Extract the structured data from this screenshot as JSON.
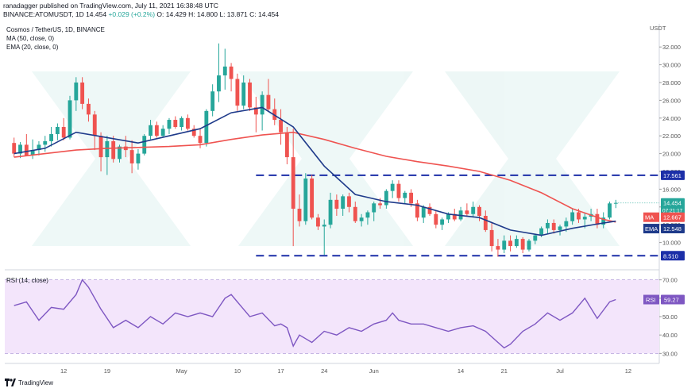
{
  "header": {
    "publisher_line": "ranadagger published on TradingView.com, July 11, 2021 16:38:48 UTC",
    "ohlc_prefix": "BINANCE:ATOMUSDT, 1D 14.454",
    "ohlc_change": "+0.029 (+0.2%)",
    "ohlc_values": "O: 14.429 H: 14.800 L: 13.871 C: 14.454"
  },
  "legend": {
    "title": "Cosmos / TetherUS, 1D, BINANCE",
    "ma": "MA (50, close, 0)",
    "ema": "EMA (20, close, 0)",
    "rsi": "RSI (14, close)"
  },
  "footer": {
    "brand": "TradingView"
  },
  "colors": {
    "up": "#26a69a",
    "down": "#ef5350",
    "ma": "#ef5350",
    "ema": "#1e3a8a",
    "level": "#1c2fa8",
    "rsi_line": "#7e57c2",
    "rsi_band": "#f3e5fb"
  },
  "chart_data": [
    {
      "type": "candlestick",
      "title": "Cosmos / TetherUS, 1D, BINANCE",
      "currency": "USDT",
      "ylim": [
        8.0,
        33.0
      ],
      "y_ticks": [
        10.0,
        12.0,
        14.0,
        16.0,
        18.0,
        20.0,
        22.0,
        24.0,
        26.0,
        28.0,
        30.0,
        32.0
      ],
      "y_tick_labels": [
        "10.000",
        "12.000",
        "14.000",
        "16.000",
        "18.000",
        "20.000",
        "22.000",
        "24.000",
        "26.000",
        "28.000",
        "30.000",
        "32.000"
      ],
      "x_labels": [
        {
          "day": 8,
          "label": "12"
        },
        {
          "day": 15,
          "label": "19"
        },
        {
          "day": 27,
          "label": "May"
        },
        {
          "day": 36,
          "label": "10"
        },
        {
          "day": 43,
          "label": "17"
        },
        {
          "day": 50,
          "label": "24"
        },
        {
          "day": 58,
          "label": "Jun"
        },
        {
          "day": 72,
          "label": "14"
        },
        {
          "day": 79,
          "label": "21"
        },
        {
          "day": 88,
          "label": "Jul"
        },
        {
          "day": 99,
          "label": "12"
        }
      ],
      "candles": [
        [
          0,
          21.2,
          21.8,
          19.6,
          20.0
        ],
        [
          1,
          20.0,
          21.3,
          19.5,
          21.0
        ],
        [
          2,
          21.0,
          22.2,
          19.8,
          19.8
        ],
        [
          3,
          19.8,
          21.6,
          19.4,
          20.4
        ],
        [
          4,
          20.4,
          21.4,
          19.8,
          21.0
        ],
        [
          5,
          21.0,
          22.0,
          20.2,
          21.4
        ],
        [
          6,
          21.4,
          23.0,
          20.8,
          22.2
        ],
        [
          7,
          22.2,
          23.4,
          21.5,
          23.0
        ],
        [
          8,
          23.0,
          24.0,
          21.5,
          21.8
        ],
        [
          9,
          21.8,
          26.5,
          21.6,
          26.0
        ],
        [
          10,
          26.0,
          28.6,
          24.8,
          28.0
        ],
        [
          11,
          28.0,
          28.6,
          25.0,
          25.6
        ],
        [
          12,
          25.6,
          26.2,
          23.6,
          24.4
        ],
        [
          13,
          24.4,
          24.8,
          20.4,
          22.0
        ],
        [
          14,
          22.0,
          22.4,
          18.0,
          19.6
        ],
        [
          15,
          19.6,
          22.0,
          17.6,
          21.4
        ],
        [
          16,
          21.4,
          22.0,
          19.0,
          19.4
        ],
        [
          17,
          19.4,
          21.0,
          19.0,
          20.8
        ],
        [
          18,
          20.8,
          22.0,
          19.6,
          20.4
        ],
        [
          19,
          20.4,
          21.5,
          17.8,
          18.9
        ],
        [
          20,
          18.9,
          20.5,
          18.2,
          20.0
        ],
        [
          21,
          20.0,
          22.2,
          19.8,
          22.0
        ],
        [
          22,
          22.0,
          23.8,
          21.6,
          23.2
        ],
        [
          23,
          23.2,
          23.6,
          21.8,
          22.0
        ],
        [
          24,
          22.0,
          23.2,
          21.8,
          22.8
        ],
        [
          25,
          22.8,
          24.0,
          22.2,
          23.8
        ],
        [
          26,
          23.8,
          24.2,
          22.8,
          23.0
        ],
        [
          27,
          23.0,
          24.2,
          22.6,
          24.0
        ],
        [
          28,
          24.0,
          24.4,
          22.6,
          22.8
        ],
        [
          29,
          22.8,
          23.2,
          21.8,
          22.0
        ],
        [
          30,
          22.0,
          22.8,
          20.6,
          21.2
        ],
        [
          31,
          21.2,
          25.0,
          20.8,
          24.8
        ],
        [
          32,
          24.8,
          27.8,
          24.2,
          27.0
        ],
        [
          33,
          27.0,
          32.4,
          25.8,
          28.8
        ],
        [
          34,
          28.8,
          31.8,
          27.2,
          29.8
        ],
        [
          35,
          29.8,
          30.2,
          27.0,
          28.4
        ],
        [
          36,
          28.4,
          29.0,
          24.8,
          25.4
        ],
        [
          37,
          25.4,
          28.8,
          25.0,
          28.0
        ],
        [
          38,
          28.0,
          28.4,
          24.8,
          25.2
        ],
        [
          39,
          25.2,
          26.4,
          22.4,
          24.4
        ],
        [
          40,
          24.4,
          27.0,
          22.6,
          26.6
        ],
        [
          41,
          26.6,
          28.4,
          24.8,
          25.0
        ],
        [
          42,
          25.0,
          26.2,
          23.2,
          23.8
        ],
        [
          43,
          23.8,
          25.0,
          21.0,
          22.4
        ],
        [
          44,
          22.4,
          23.0,
          18.8,
          19.6
        ],
        [
          45,
          19.6,
          22.8,
          9.6,
          13.8
        ],
        [
          46,
          13.8,
          15.4,
          11.8,
          12.4
        ],
        [
          47,
          12.4,
          17.8,
          12.0,
          17.2
        ],
        [
          48,
          17.2,
          17.6,
          12.6,
          12.8
        ],
        [
          49,
          12.8,
          13.2,
          11.4,
          11.8
        ],
        [
          50,
          11.8,
          12.6,
          8.6,
          12.0
        ],
        [
          51,
          12.0,
          15.6,
          11.6,
          14.8
        ],
        [
          52,
          14.8,
          15.4,
          13.0,
          13.8
        ],
        [
          53,
          13.8,
          15.4,
          13.0,
          15.2
        ],
        [
          54,
          15.2,
          15.6,
          13.4,
          14.0
        ],
        [
          55,
          14.0,
          14.6,
          12.2,
          12.4
        ],
        [
          56,
          12.4,
          13.2,
          11.8,
          12.8
        ],
        [
          57,
          12.8,
          13.6,
          12.0,
          13.4
        ],
        [
          58,
          13.4,
          14.6,
          12.4,
          14.4
        ],
        [
          59,
          14.4,
          15.0,
          13.8,
          14.2
        ],
        [
          60,
          14.2,
          16.0,
          13.8,
          15.8
        ],
        [
          61,
          15.8,
          17.0,
          15.0,
          16.6
        ],
        [
          62,
          16.6,
          17.0,
          14.6,
          15.0
        ],
        [
          63,
          15.0,
          15.8,
          14.4,
          15.6
        ],
        [
          64,
          15.6,
          16.0,
          14.0,
          14.4
        ],
        [
          65,
          14.4,
          14.8,
          12.4,
          12.8
        ],
        [
          66,
          12.8,
          14.2,
          12.2,
          14.0
        ],
        [
          67,
          14.0,
          14.4,
          13.0,
          13.2
        ],
        [
          68,
          13.2,
          13.6,
          11.6,
          12.0
        ],
        [
          69,
          12.0,
          12.8,
          11.4,
          12.6
        ],
        [
          70,
          12.6,
          13.4,
          12.2,
          13.2
        ],
        [
          71,
          13.2,
          13.8,
          12.4,
          12.6
        ],
        [
          72,
          12.6,
          14.0,
          12.4,
          13.6
        ],
        [
          73,
          13.6,
          14.4,
          13.0,
          13.2
        ],
        [
          74,
          13.2,
          14.6,
          12.8,
          14.0
        ],
        [
          75,
          14.0,
          14.2,
          12.4,
          13.0
        ],
        [
          76,
          13.0,
          13.6,
          11.2,
          11.4
        ],
        [
          77,
          11.4,
          12.2,
          9.0,
          9.6
        ],
        [
          78,
          9.6,
          10.4,
          8.4,
          9.2
        ],
        [
          79,
          9.2,
          10.8,
          8.8,
          10.2
        ],
        [
          80,
          10.2,
          10.8,
          9.0,
          9.6
        ],
        [
          81,
          9.6,
          10.8,
          9.4,
          10.4
        ],
        [
          82,
          10.4,
          10.6,
          8.8,
          9.2
        ],
        [
          83,
          9.2,
          10.4,
          9.0,
          10.2
        ],
        [
          84,
          10.2,
          11.0,
          9.8,
          10.8
        ],
        [
          85,
          10.8,
          11.8,
          10.6,
          11.6
        ],
        [
          86,
          11.6,
          12.6,
          11.0,
          12.2
        ],
        [
          87,
          12.2,
          12.6,
          11.0,
          11.4
        ],
        [
          88,
          11.4,
          12.0,
          10.8,
          11.8
        ],
        [
          89,
          11.8,
          12.8,
          11.2,
          12.4
        ],
        [
          90,
          12.4,
          13.8,
          12.0,
          13.4
        ],
        [
          91,
          13.4,
          13.8,
          12.2,
          12.6
        ],
        [
          92,
          12.6,
          13.4,
          11.6,
          12.9
        ],
        [
          93,
          12.9,
          13.8,
          12.4,
          13.2
        ],
        [
          94,
          13.2,
          13.8,
          11.6,
          12.0
        ],
        [
          95,
          12.0,
          13.4,
          11.6,
          12.8
        ],
        [
          96,
          12.8,
          14.6,
          12.6,
          14.4
        ],
        [
          97,
          14.429,
          14.8,
          13.871,
          14.454
        ]
      ],
      "series": [
        {
          "name": "MA (50, close, 0)",
          "x": [
            0,
            5,
            10,
            15,
            20,
            25,
            30,
            35,
            40,
            45,
            50,
            55,
            60,
            65,
            70,
            75,
            80,
            85,
            90,
            95,
            97
          ],
          "values": [
            19.6,
            20.0,
            20.4,
            20.6,
            20.7,
            20.8,
            21.0,
            21.6,
            22.1,
            22.4,
            21.6,
            20.6,
            19.7,
            19.1,
            18.6,
            18.0,
            17.0,
            15.6,
            13.8,
            12.6,
            12.3
          ]
        },
        {
          "name": "EMA (20, close, 0)",
          "x": [
            0,
            5,
            10,
            15,
            20,
            25,
            30,
            35,
            40,
            45,
            50,
            55,
            60,
            65,
            70,
            75,
            80,
            85,
            90,
            95,
            97
          ],
          "values": [
            20.0,
            20.6,
            22.4,
            21.8,
            21.2,
            22.0,
            22.8,
            24.6,
            25.2,
            23.0,
            18.6,
            15.4,
            14.6,
            14.2,
            13.2,
            12.8,
            11.4,
            10.8,
            11.6,
            12.2,
            12.4
          ]
        }
      ],
      "levels": [
        {
          "value": 17.561,
          "label": "17.561"
        },
        {
          "value": 8.51,
          "label": "8.510"
        }
      ],
      "price_badges": [
        {
          "value": 14.454,
          "label": "14.454",
          "sublabel": "07:21:17",
          "tag": ""
        },
        {
          "value": 12.667,
          "label": "12.667",
          "tag": "MA"
        },
        {
          "value": 12.548,
          "label": "12.548",
          "tag": "EMA"
        }
      ]
    },
    {
      "type": "line",
      "title": "RSI (14, close)",
      "ylim": [
        28.0,
        72.0
      ],
      "y_ticks": [
        30.0,
        40.0,
        50.0,
        60.0,
        70.0
      ],
      "y_tick_labels": [
        "30.00",
        "40.00",
        "50.00",
        "60.00",
        "70.00"
      ],
      "band": [
        30.0,
        70.0
      ],
      "series": [
        {
          "name": "RSI",
          "x": [
            0,
            2,
            4,
            6,
            8,
            10,
            11,
            12,
            14,
            16,
            18,
            20,
            22,
            24,
            26,
            28,
            30,
            32,
            33,
            34,
            35,
            36,
            38,
            40,
            42,
            43,
            44,
            45,
            46,
            47,
            48,
            50,
            52,
            54,
            56,
            58,
            60,
            61,
            62,
            64,
            66,
            68,
            70,
            72,
            74,
            76,
            78,
            79,
            80,
            82,
            84,
            86,
            88,
            90,
            92,
            94,
            96,
            97
          ],
          "values": [
            56,
            58,
            48,
            55,
            54,
            62,
            70,
            66,
            54,
            44,
            48,
            44,
            50,
            46,
            52,
            50,
            52,
            50,
            55,
            60,
            62,
            58,
            50,
            52,
            45,
            46,
            44,
            34,
            40,
            38,
            36,
            42,
            40,
            44,
            42,
            46,
            48,
            52,
            48,
            46,
            46,
            44,
            42,
            44,
            45,
            42,
            36,
            33,
            35,
            42,
            46,
            52,
            48,
            52,
            60,
            49,
            58,
            59.27
          ]
        }
      ],
      "value_badge": {
        "tag": "RSI",
        "label": "59.27",
        "value": 59.27
      }
    }
  ]
}
